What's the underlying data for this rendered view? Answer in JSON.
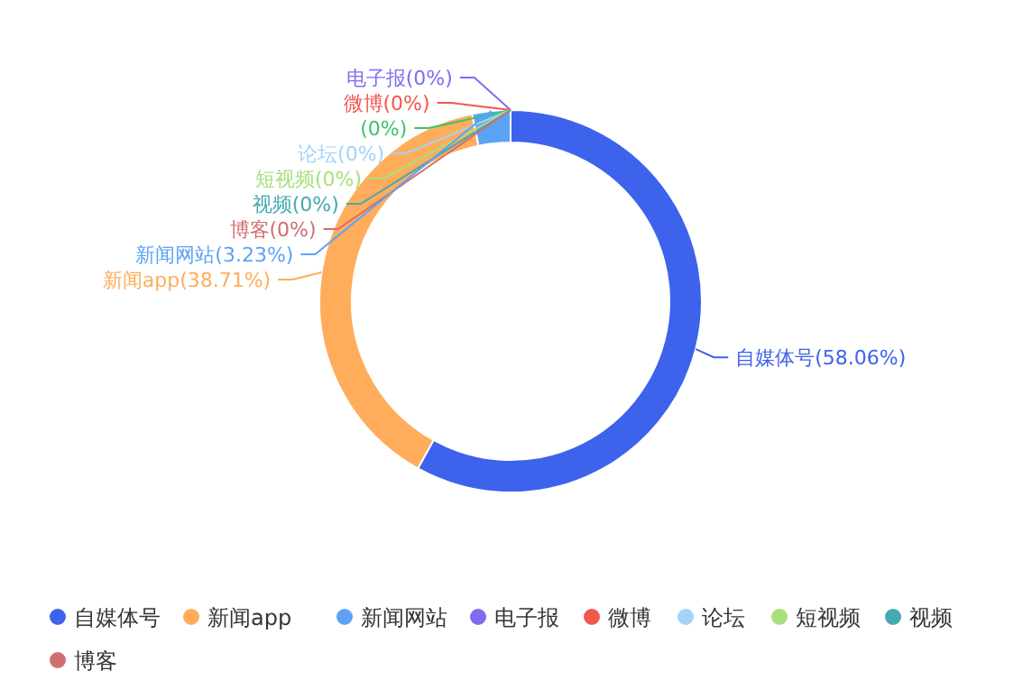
{
  "chart_data": {
    "type": "donut",
    "categories": [
      "自媒体号",
      "新闻app",
      "新闻网站",
      "电子报",
      "微博",
      null,
      "论坛",
      "短视频",
      "视频",
      "博客"
    ],
    "values": [
      58.06,
      38.71,
      3.23,
      0,
      0,
      0,
      0,
      0,
      0,
      0
    ],
    "colors": [
      "#3d63ec",
      "#ffad5b",
      "#5ca3f7",
      "#7e6cf2",
      "#f3564d",
      "#3dc46a",
      "#a3d3fb",
      "#a8e07a",
      "#44a9b0",
      "#d06f6f"
    ],
    "value_labels": [
      "自媒体号(58.06%)",
      "新闻app(38.71%)",
      "新闻网站(3.23%)",
      "电子报(0%)",
      "微博(0%)",
      "(0%)",
      "论坛(0%)",
      "短视频(0%)",
      "视频(0%)",
      "博客(0%)"
    ],
    "legend": "bottom"
  }
}
